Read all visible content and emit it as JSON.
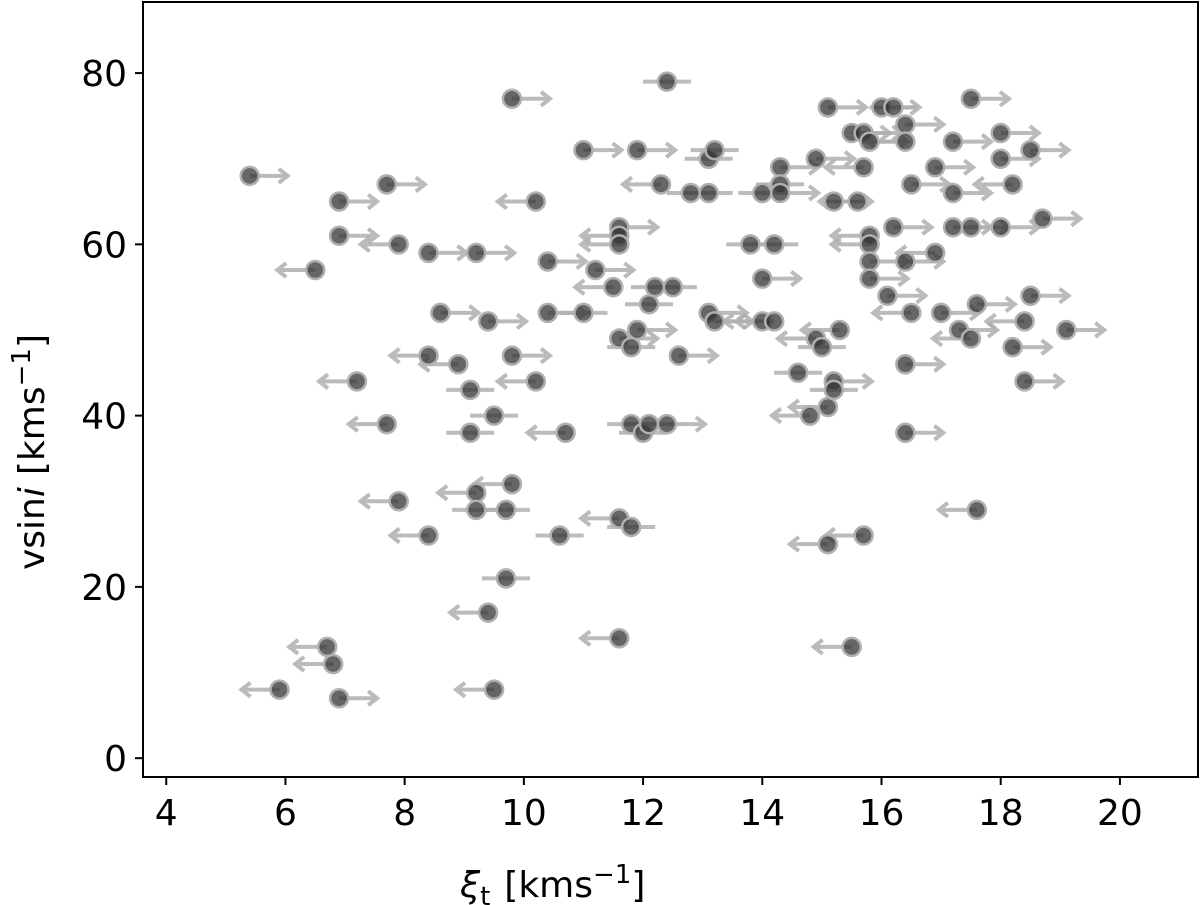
{
  "chart_data": {
    "type": "scatter",
    "xlabel": {
      "symbol": "ξ",
      "subscript": "t",
      "unit": "[kms",
      "exponent": "−1",
      "close": "]"
    },
    "ylabel": {
      "prefix": "vsin",
      "italic": "i",
      "unit": "[kms",
      "exponent": "−1",
      "close": "]"
    },
    "xlim": [
      3.61,
      21.31
    ],
    "ylim": [
      -2.2,
      88.3
    ],
    "xticks": [
      4,
      6,
      8,
      10,
      12,
      14,
      16,
      18,
      20
    ],
    "yticks": [
      0,
      20,
      40,
      60,
      80
    ],
    "color": "#333333",
    "limit_color": "#b0b0b0",
    "x": [
      5.4,
      5.9,
      6.5,
      6.7,
      6.8,
      6.9,
      6.9,
      6.9,
      7.2,
      7.7,
      7.7,
      7.9,
      7.9,
      8.4,
      8.4,
      8.4,
      8.6,
      8.9,
      9.1,
      9.1,
      9.2,
      9.2,
      9.2,
      9.4,
      9.4,
      9.5,
      9.5,
      9.7,
      9.7,
      9.8,
      9.8,
      9.8,
      10.2,
      10.2,
      10.4,
      10.4,
      10.6,
      10.7,
      11.0,
      11.0,
      11.2,
      11.5,
      11.6,
      11.6,
      11.6,
      11.6,
      11.6,
      11.6,
      11.8,
      11.8,
      11.8,
      11.9,
      11.9,
      12.0,
      12.1,
      12.1,
      12.2,
      12.3,
      12.4,
      12.4,
      12.5,
      12.6,
      12.8,
      13.1,
      13.1,
      13.1,
      13.2,
      13.2,
      13.8,
      14.0,
      14.0,
      14.0,
      14.2,
      14.2,
      14.3,
      14.3,
      14.3,
      14.6,
      14.8,
      14.9,
      14.9,
      15.0,
      15.1,
      15.1,
      15.1,
      15.2,
      15.2,
      15.2,
      15.3,
      15.5,
      15.5,
      15.6,
      15.7,
      15.7,
      15.7,
      15.8,
      15.8,
      15.8,
      15.8,
      15.8,
      16.0,
      16.1,
      16.2,
      16.2,
      16.4,
      16.4,
      16.4,
      16.4,
      16.4,
      16.5,
      16.5,
      16.9,
      16.9,
      17.0,
      17.2,
      17.2,
      17.2,
      17.3,
      17.5,
      17.5,
      17.5,
      17.6,
      17.6,
      18.0,
      18.0,
      18.0,
      18.2,
      18.2,
      18.4,
      18.4,
      18.5,
      18.5,
      18.7,
      19.1
    ],
    "values": [
      68,
      8,
      57,
      13,
      11,
      7,
      65,
      61,
      44,
      67,
      39,
      60,
      30,
      59,
      47,
      26,
      52,
      46,
      43,
      38,
      59,
      31,
      29,
      51,
      17,
      40,
      8,
      29,
      21,
      77,
      47,
      32,
      65,
      44,
      58,
      52,
      26,
      38,
      71,
      52,
      57,
      55,
      62,
      61,
      60,
      49,
      28,
      14,
      48,
      39,
      27,
      71,
      50,
      38,
      53,
      39,
      55,
      67,
      79,
      39,
      55,
      47,
      66,
      52,
      70,
      66,
      71,
      51,
      60,
      66,
      56,
      51,
      60,
      51,
      69,
      67,
      66,
      45,
      40,
      70,
      49,
      48,
      76,
      41,
      25,
      65,
      44,
      43,
      50,
      73,
      13,
      65,
      73,
      69,
      26,
      72,
      61,
      60,
      58,
      56,
      76,
      54,
      76,
      62,
      74,
      72,
      58,
      46,
      38,
      67,
      52,
      69,
      59,
      52,
      72,
      66,
      62,
      50,
      77,
      62,
      49,
      53,
      29,
      73,
      70,
      62,
      67,
      48,
      51,
      44,
      71,
      54,
      63,
      50
    ],
    "limits": [
      "lower",
      "upper",
      "upper",
      "upper",
      "upper",
      "lower",
      "lower",
      "lower",
      "upper",
      "lower",
      "upper",
      "upper",
      "upper",
      "lower",
      "upper",
      "upper",
      "lower",
      "upper",
      null,
      null,
      "lower",
      "upper",
      null,
      "lower",
      "upper",
      null,
      "upper",
      null,
      null,
      "lower",
      "lower",
      "upper",
      "upper",
      "upper",
      "lower",
      "lower",
      null,
      "upper",
      "lower",
      null,
      "lower",
      "upper",
      "lower",
      "upper",
      "upper",
      "lower",
      "upper",
      "upper",
      null,
      null,
      null,
      "lower",
      "lower",
      null,
      null,
      null,
      null,
      "upper",
      null,
      "lower",
      null,
      "lower",
      null,
      "lower",
      null,
      null,
      null,
      "lower",
      null,
      null,
      "lower",
      "upper",
      null,
      "upper",
      "lower",
      null,
      "lower",
      null,
      "upper",
      "lower",
      "upper",
      null,
      "lower",
      "upper",
      "upper",
      "lower",
      "lower",
      null,
      "upper",
      "lower",
      "upper",
      "upper",
      "lower",
      "upper",
      "upper",
      "lower",
      "upper",
      "upper",
      "lower",
      "lower",
      "lower",
      "lower",
      null,
      "lower",
      "lower",
      "upper",
      "lower",
      "lower",
      "lower",
      "lower",
      "upper",
      "lower",
      "upper",
      "lower",
      "lower",
      "lower",
      "lower",
      "lower",
      "lower",
      "lower",
      "upper",
      "lower",
      "upper",
      "lower",
      "lower",
      "lower",
      "upper",
      "lower",
      "upper",
      "lower",
      "lower",
      "lower",
      "lower",
      "lower"
    ]
  }
}
